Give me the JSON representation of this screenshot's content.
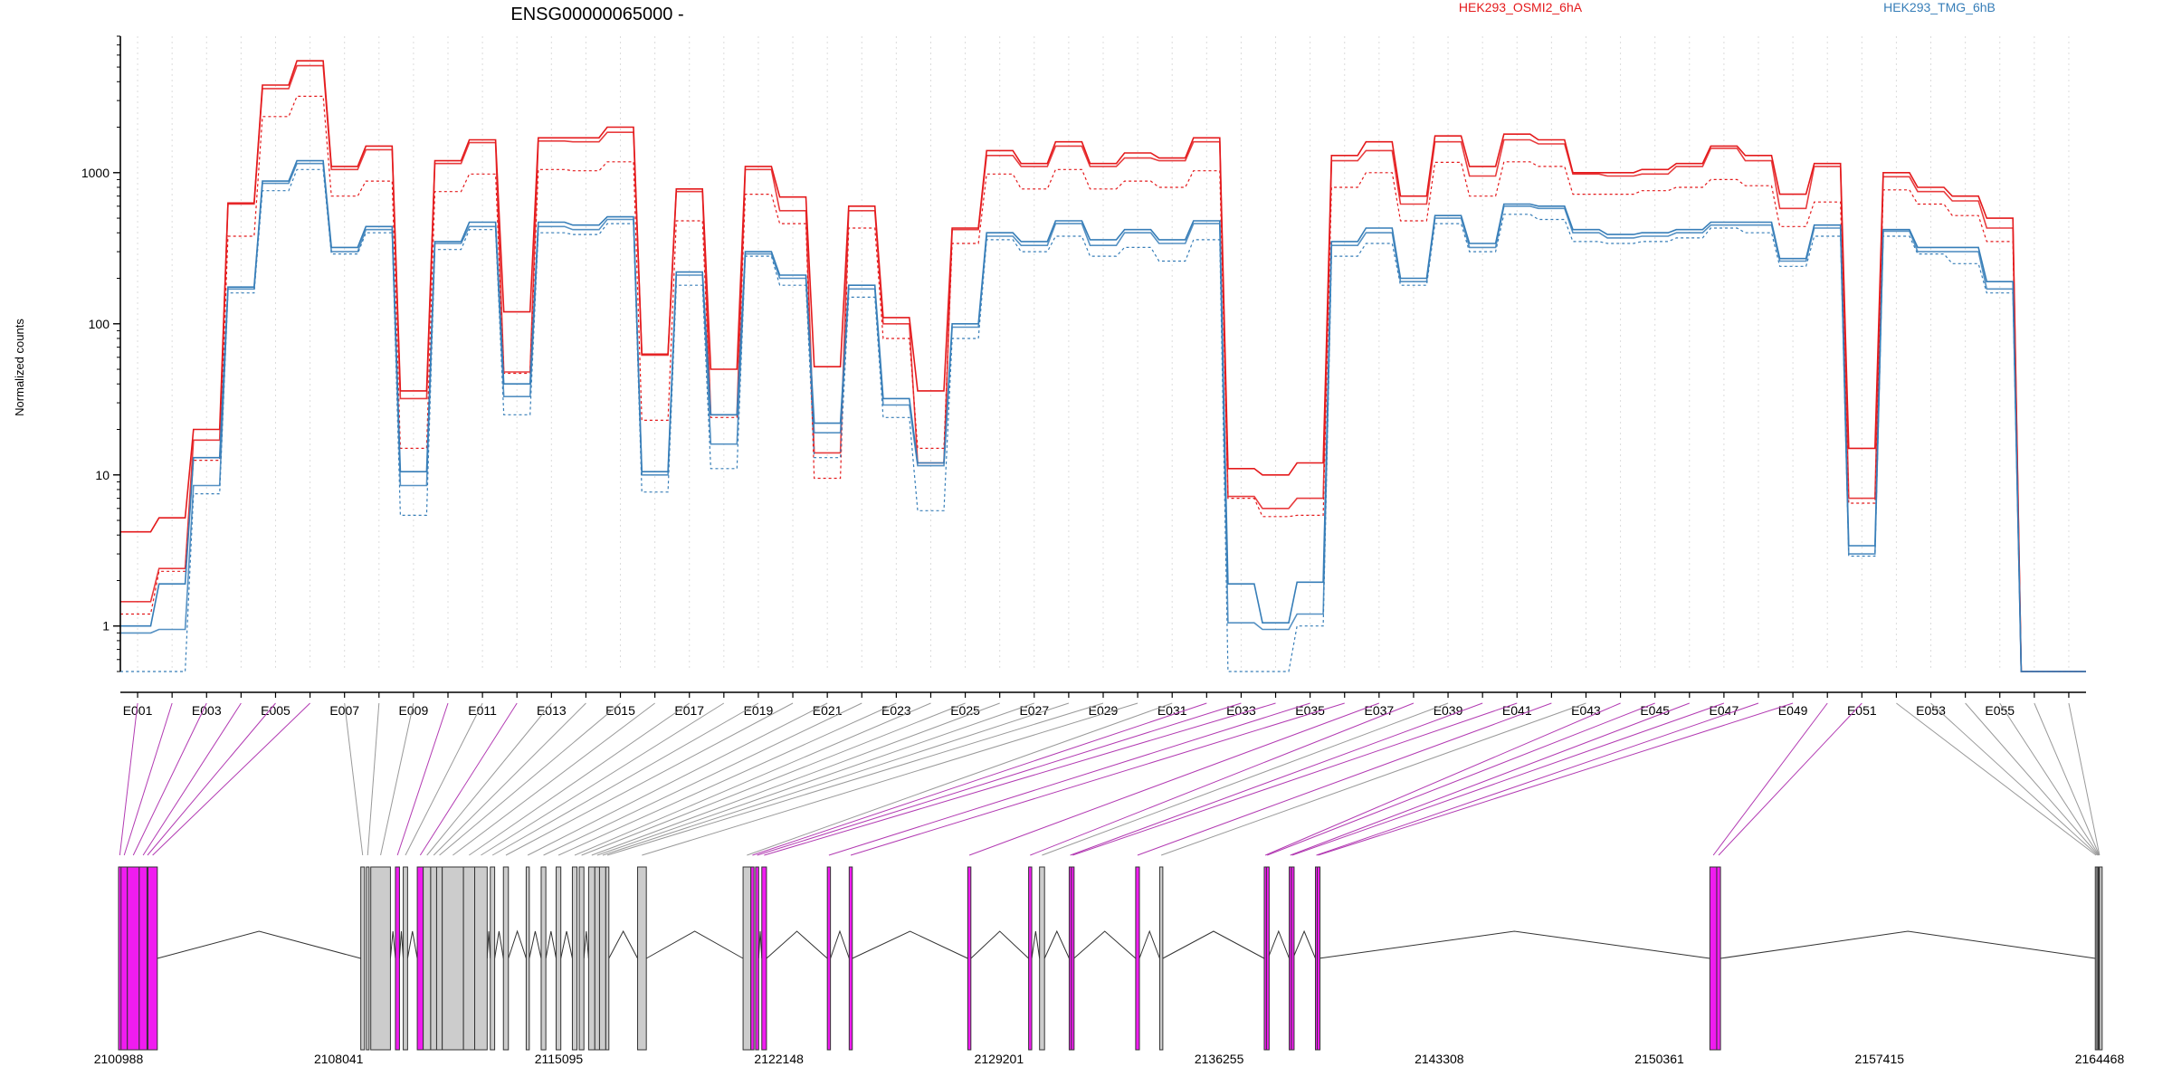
{
  "chart_data": {
    "type": "line",
    "title": "ENSG00000065000 -",
    "ylabel": "Normalized counts",
    "y_scale": "log",
    "ylim": [
      0.5,
      8000
    ],
    "y_ticks": [
      1,
      10,
      100,
      1000
    ],
    "y_tick_labels": [
      "1",
      "10",
      "100",
      "1000"
    ],
    "x_tick_labels": [
      "E001",
      "E003",
      "E005",
      "E007",
      "E009",
      "E011",
      "E013",
      "E015",
      "E017",
      "E019",
      "E021",
      "E023",
      "E025",
      "E027",
      "E029",
      "E031",
      "E033",
      "E035",
      "E037",
      "E039",
      "E041",
      "E043",
      "E045",
      "E047",
      "E049",
      "E051",
      "E053",
      "E055"
    ],
    "legend": [
      "HEK293_OSMI2_6hA",
      "HEK293_TMG_6hB"
    ],
    "legend_placement": "top",
    "colors": {
      "OSMI2": "#e41a1c",
      "TMG": "#377eb8",
      "highlight_exon": "#f01cf0",
      "exon": "#cccccc",
      "line": "#666666"
    },
    "grid": "vertical",
    "bins": 57,
    "series": [
      {
        "name": "HEK293_OSMI2_6hA",
        "style": "solid",
        "values": [
          4.2,
          5.2,
          20,
          630,
          3800,
          5500,
          1100,
          1500,
          36,
          1200,
          1650,
          120,
          1700,
          1700,
          2000,
          63,
          780,
          50,
          1100,
          690,
          52,
          600,
          110,
          36,
          430,
          1400,
          1150,
          1600,
          1150,
          1350,
          1250,
          1700,
          11,
          10,
          12,
          1300,
          1600,
          700,
          1750,
          1100,
          1800,
          1650,
          1000,
          1000,
          1050,
          1150,
          1500,
          1300,
          720,
          1150,
          15,
          1000,
          800,
          700,
          500,
          0.5,
          0.5
        ]
      },
      {
        "name": "HEK293_OSMI2_6hA",
        "style": "dashed",
        "values": [
          1.2,
          2.3,
          12.5,
          380,
          2350,
          3200,
          700,
          880,
          15,
          750,
          980,
          47,
          1050,
          1030,
          1180,
          23,
          480,
          24,
          720,
          460,
          9.5,
          430,
          80,
          15,
          340,
          980,
          780,
          1050,
          780,
          880,
          800,
          1030,
          7,
          5.3,
          5.4,
          800,
          1000,
          480,
          1170,
          700,
          1180,
          1100,
          720,
          720,
          760,
          800,
          900,
          820,
          440,
          640,
          6.5,
          770,
          620,
          520,
          350,
          0.5,
          0.5
        ]
      },
      {
        "name": "HEK293_OSMI2_6hA",
        "style": "solid2",
        "values": [
          1.45,
          2.4,
          17,
          620,
          3600,
          5100,
          1050,
          1420,
          32,
          1150,
          1580,
          48,
          1620,
          1600,
          1850,
          62,
          750,
          25,
          1050,
          560,
          14,
          560,
          100,
          12,
          420,
          1300,
          1100,
          1500,
          1100,
          1250,
          1200,
          1600,
          7.2,
          6,
          7,
          1200,
          1400,
          620,
          1600,
          950,
          1650,
          1550,
          980,
          950,
          980,
          1100,
          1450,
          1200,
          580,
          1100,
          7,
          940,
          750,
          650,
          430,
          0.5,
          0.5
        ]
      },
      {
        "name": "HEK293_TMG_6hB",
        "style": "solid",
        "values": [
          1.0,
          1.9,
          13,
          175,
          880,
          1200,
          320,
          440,
          10.5,
          350,
          470,
          40,
          470,
          450,
          510,
          10.5,
          220,
          25,
          300,
          210,
          22,
          180,
          32,
          12,
          100,
          400,
          350,
          480,
          360,
          420,
          360,
          480,
          1.9,
          1.05,
          1.95,
          350,
          430,
          200,
          520,
          340,
          620,
          600,
          420,
          390,
          400,
          420,
          470,
          470,
          270,
          450,
          3.4,
          420,
          320,
          320,
          190,
          0.5,
          0.5
        ]
      },
      {
        "name": "HEK293_TMG_6hB",
        "style": "dashed",
        "values": [
          0.5,
          0.5,
          7.5,
          160,
          760,
          1050,
          290,
          400,
          5.4,
          310,
          420,
          25,
          400,
          390,
          460,
          7.7,
          180,
          11,
          280,
          180,
          13,
          150,
          24,
          5.8,
          80,
          360,
          300,
          380,
          280,
          320,
          260,
          360,
          0.5,
          0.5,
          1.0,
          280,
          340,
          180,
          460,
          300,
          530,
          490,
          350,
          340,
          350,
          370,
          430,
          400,
          240,
          380,
          2.9,
          380,
          290,
          250,
          160,
          0.5,
          0.5
        ]
      },
      {
        "name": "HEK293_TMG_6hB",
        "style": "solid2",
        "values": [
          0.9,
          0.95,
          8.5,
          170,
          850,
          1150,
          300,
          420,
          8.5,
          340,
          440,
          33,
          440,
          420,
          490,
          10,
          210,
          16,
          290,
          200,
          19,
          170,
          29,
          11.5,
          95,
          380,
          330,
          460,
          330,
          400,
          340,
          460,
          1.05,
          0.95,
          1.2,
          330,
          400,
          190,
          500,
          320,
          600,
          580,
          400,
          370,
          380,
          400,
          450,
          450,
          260,
          430,
          3,
          410,
          300,
          300,
          170,
          0.5,
          0.5
        ]
      }
    ]
  },
  "genome_axis": {
    "start": 2100988,
    "end": 2164468,
    "tick_labels": [
      "2100988",
      "2108041",
      "2115095",
      "2122148",
      "2129201",
      "2136255",
      "2143308",
      "2150361",
      "2157415",
      "2164468"
    ]
  },
  "exons": [
    {
      "id": "E001",
      "start": 2100988,
      "end": 2101067,
      "highlight": true
    },
    {
      "id": "E002",
      "start": 2101067,
      "end": 2101270,
      "highlight": true
    },
    {
      "id": "E003",
      "start": 2101270,
      "end": 2101650,
      "highlight": true
    },
    {
      "id": "E004",
      "start": 2101650,
      "end": 2101900,
      "highlight": true
    },
    {
      "id": "E005",
      "start": 2101900,
      "end": 2101930,
      "highlight": true
    },
    {
      "id": "E006",
      "start": 2101930,
      "end": 2102230,
      "highlight": true
    },
    {
      "id": "E007",
      "start": 2108750,
      "end": 2108870,
      "highlight": false
    },
    {
      "id": "E008",
      "start": 2108930,
      "end": 2109010,
      "highlight": false
    },
    {
      "id": "E009",
      "start": 2109070,
      "end": 2109700,
      "highlight": false
    },
    {
      "id": "E010",
      "start": 2109860,
      "end": 2109990,
      "highlight": true
    },
    {
      "id": "E011",
      "start": 2110110,
      "end": 2110250,
      "highlight": false
    },
    {
      "id": "E012",
      "start": 2110560,
      "end": 2110750,
      "highlight": true
    },
    {
      "id": "E013",
      "start": 2110750,
      "end": 2110990,
      "highlight": false
    },
    {
      "id": "E014",
      "start": 2110990,
      "end": 2111180,
      "highlight": false
    },
    {
      "id": "E015",
      "start": 2111180,
      "end": 2111360,
      "highlight": false
    },
    {
      "id": "E016",
      "start": 2111360,
      "end": 2112040,
      "highlight": false
    },
    {
      "id": "E017",
      "start": 2112040,
      "end": 2112400,
      "highlight": false
    },
    {
      "id": "E018",
      "start": 2112400,
      "end": 2112800,
      "highlight": false
    },
    {
      "id": "E019",
      "start": 2112900,
      "end": 2113040,
      "highlight": false
    },
    {
      "id": "E020",
      "start": 2113320,
      "end": 2113480,
      "highlight": false
    },
    {
      "id": "E021",
      "start": 2114050,
      "end": 2114150,
      "highlight": false
    },
    {
      "id": "E022",
      "start": 2114530,
      "end": 2114680,
      "highlight": false
    },
    {
      "id": "E023",
      "start": 2115010,
      "end": 2115160,
      "highlight": false
    },
    {
      "id": "E024",
      "start": 2115530,
      "end": 2115680,
      "highlight": false
    },
    {
      "id": "E025",
      "start": 2115750,
      "end": 2115900,
      "highlight": false
    },
    {
      "id": "E026",
      "start": 2116050,
      "end": 2116250,
      "highlight": false
    },
    {
      "id": "E027",
      "start": 2116250,
      "end": 2116400,
      "highlight": false
    },
    {
      "id": "E028",
      "start": 2116400,
      "end": 2116600,
      "highlight": false
    },
    {
      "id": "E029",
      "start": 2116600,
      "end": 2116700,
      "highlight": false
    },
    {
      "id": "E030",
      "start": 2117620,
      "end": 2117900,
      "highlight": false
    },
    {
      "id": "E031",
      "start": 2121000,
      "end": 2121250,
      "highlight": false
    },
    {
      "id": "E032",
      "start": 2121250,
      "end": 2121350,
      "highlight": true
    },
    {
      "id": "E033",
      "start": 2121400,
      "end": 2121500,
      "highlight": true
    },
    {
      "id": "E034",
      "start": 2121600,
      "end": 2121750,
      "highlight": true
    },
    {
      "id": "E035",
      "start": 2123700,
      "end": 2123800,
      "highlight": true
    },
    {
      "id": "E036",
      "start": 2124400,
      "end": 2124500,
      "highlight": true
    },
    {
      "id": "E037",
      "start": 2128200,
      "end": 2128300,
      "highlight": true
    },
    {
      "id": "E038",
      "start": 2130150,
      "end": 2130250,
      "highlight": true
    },
    {
      "id": "E039",
      "start": 2130500,
      "end": 2130660,
      "highlight": false
    },
    {
      "id": "E040",
      "start": 2131450,
      "end": 2131520,
      "highlight": true
    },
    {
      "id": "E041",
      "start": 2131520,
      "end": 2131600,
      "highlight": true
    },
    {
      "id": "E042",
      "start": 2133580,
      "end": 2133700,
      "highlight": true
    },
    {
      "id": "E043",
      "start": 2134350,
      "end": 2134450,
      "highlight": false
    },
    {
      "id": "E044",
      "start": 2137700,
      "end": 2137770,
      "highlight": true
    },
    {
      "id": "E045",
      "start": 2137770,
      "end": 2137820,
      "highlight": true
    },
    {
      "id": "E046",
      "start": 2138500,
      "end": 2138570,
      "highlight": true
    },
    {
      "id": "E047",
      "start": 2138570,
      "end": 2138620,
      "highlight": true
    },
    {
      "id": "E048",
      "start": 2139340,
      "end": 2139400,
      "highlight": true
    },
    {
      "id": "E049",
      "start": 2139400,
      "end": 2139450,
      "highlight": true
    },
    {
      "id": "E050",
      "start": 2151980,
      "end": 2152200,
      "highlight": true
    },
    {
      "id": "E051",
      "start": 2152200,
      "end": 2152320,
      "highlight": true
    },
    {
      "id": "E052",
      "start": 2164330,
      "end": 2164380,
      "highlight": false
    },
    {
      "id": "E053",
      "start": 2164380,
      "end": 2164420,
      "highlight": false
    },
    {
      "id": "E054",
      "start": 2164420,
      "end": 2164440,
      "highlight": false
    },
    {
      "id": "E055",
      "start": 2164440,
      "end": 2164455,
      "highlight": false
    },
    {
      "id": "E056",
      "start": 2164455,
      "end": 2164462,
      "highlight": false
    },
    {
      "id": "E057",
      "start": 2164462,
      "end": 2164468,
      "highlight": false
    }
  ]
}
